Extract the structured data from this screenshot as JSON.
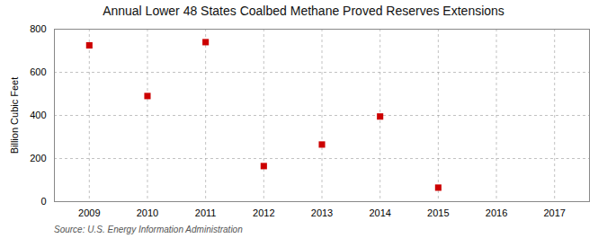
{
  "chart_data": {
    "type": "scatter",
    "title": "Annual Lower 48 States Coalbed Methane Proved Reserves Extensions",
    "ylabel": "Billion Cubic Feet",
    "source": "Source: U.S. Energy Information Administration",
    "x": [
      2009,
      2010,
      2011,
      2012,
      2013,
      2014,
      2015
    ],
    "values": [
      725,
      490,
      740,
      165,
      265,
      395,
      65
    ],
    "color": "#cc0000",
    "marker": "square",
    "xlim": [
      2008.4,
      2017.6
    ],
    "xticks": [
      2009,
      2010,
      2011,
      2012,
      2013,
      2014,
      2015,
      2016,
      2017
    ],
    "ylim": [
      0,
      800
    ],
    "yticks": [
      0,
      200,
      400,
      600,
      800
    ],
    "grid": true
  }
}
